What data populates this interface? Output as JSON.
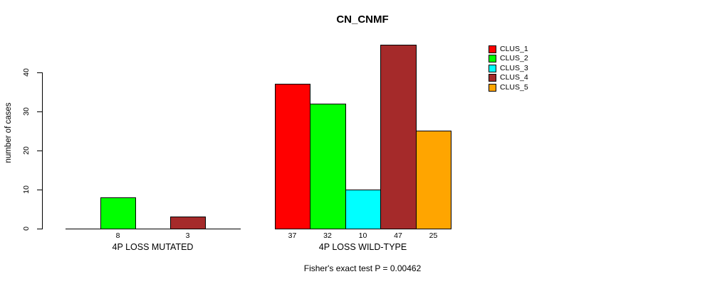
{
  "chart_data": {
    "type": "bar",
    "title": "CN_CNMF",
    "ylabel": "number of cases",
    "xlabel": "",
    "footnote": "Fisher's exact test P = 0.00462",
    "categories": [
      "4P LOSS MUTATED",
      "4P LOSS WILD-TYPE"
    ],
    "series": [
      {
        "name": "CLUS_1",
        "color": "#FF0000",
        "values": [
          0,
          37
        ]
      },
      {
        "name": "CLUS_2",
        "color": "#00FF00",
        "values": [
          8,
          32
        ]
      },
      {
        "name": "CLUS_3",
        "color": "#00FFFF",
        "values": [
          0,
          10
        ]
      },
      {
        "name": "CLUS_4",
        "color": "#A52A2A",
        "values": [
          3,
          47
        ]
      },
      {
        "name": "CLUS_5",
        "color": "#FFA500",
        "values": [
          0,
          25
        ]
      }
    ],
    "yticks": [
      0,
      10,
      20,
      30,
      40
    ],
    "ylim": [
      0,
      47
    ],
    "grid": false,
    "legend_position": "top-right",
    "bar_value_labels_shown_for_nonzero_only": true,
    "axis_color": "#000000",
    "background_color": "#FFFFFF"
  }
}
